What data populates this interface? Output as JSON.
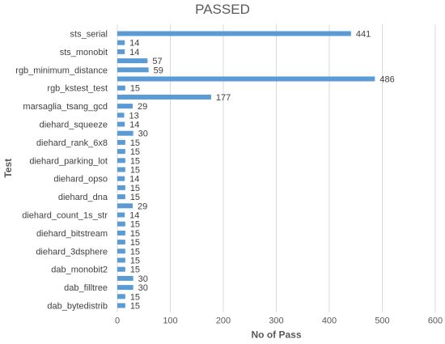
{
  "chart_data": {
    "type": "bar",
    "orientation": "horizontal",
    "title": "PASSED",
    "xlabel": "No of Pass",
    "ylabel": "Test",
    "xlim": [
      0,
      600
    ],
    "xticks": [
      "0",
      "100",
      "200",
      "300",
      "400",
      "500",
      "600"
    ],
    "grid": "vertical",
    "bar_color": "#5b9bd5",
    "bars": [
      {
        "label": "sts_serial",
        "value": 441
      },
      {
        "label": "",
        "value": 14
      },
      {
        "label": "sts_monobit",
        "value": 14
      },
      {
        "label": "",
        "value": 57
      },
      {
        "label": "rgb_minimum_distance",
        "value": 59
      },
      {
        "label": "",
        "value": 486
      },
      {
        "label": "rgb_kstest_test",
        "value": 15
      },
      {
        "label": "",
        "value": 177
      },
      {
        "label": "marsaglia_tsang_gcd",
        "value": 29
      },
      {
        "label": "",
        "value": 13
      },
      {
        "label": "diehard_squeeze",
        "value": 14
      },
      {
        "label": "",
        "value": 30
      },
      {
        "label": "diehard_rank_6x8",
        "value": 15
      },
      {
        "label": "",
        "value": 15
      },
      {
        "label": "diehard_parking_lot",
        "value": 15
      },
      {
        "label": "",
        "value": 15
      },
      {
        "label": "diehard_opso",
        "value": 14
      },
      {
        "label": "",
        "value": 15
      },
      {
        "label": "diehard_dna",
        "value": 15
      },
      {
        "label": "",
        "value": 29
      },
      {
        "label": "diehard_count_1s_str",
        "value": 14
      },
      {
        "label": "",
        "value": 15
      },
      {
        "label": "diehard_bitstream",
        "value": 15
      },
      {
        "label": "",
        "value": 15
      },
      {
        "label": "diehard_3dsphere",
        "value": 15
      },
      {
        "label": "",
        "value": 15
      },
      {
        "label": "dab_monobit2",
        "value": 15
      },
      {
        "label": "",
        "value": 30
      },
      {
        "label": "dab_filltree",
        "value": 30
      },
      {
        "label": "",
        "value": 15
      },
      {
        "label": "dab_bytedistrib",
        "value": 15
      }
    ]
  }
}
